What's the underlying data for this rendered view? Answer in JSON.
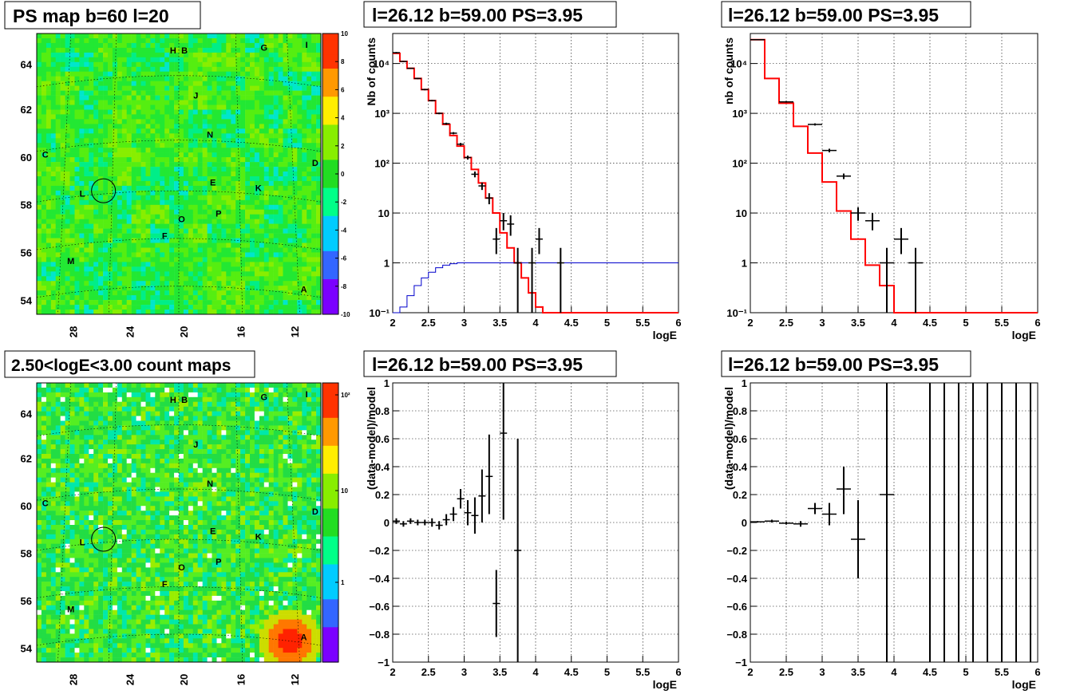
{
  "titles": {
    "map_top": "PS map b=60 l=20",
    "map_bottom": "2.50<logE<3.00 count maps",
    "spec_left": "l=26.12 b=59.00 PS=3.95",
    "spec_right": "l=26.12 b=59.00 PS=3.95",
    "res_left": "l=26.12 b=59.00 PS=3.95",
    "res_right": "l=26.12 b=59.00 PS=3.95"
  },
  "maps": {
    "x_ticks": [
      "28",
      "24",
      "20",
      "16",
      "12"
    ],
    "y_ticks": [
      "64",
      "62",
      "60",
      "58",
      "56",
      "54"
    ],
    "source_labels": [
      "H",
      "B",
      "G",
      "I",
      "J",
      "N",
      "C",
      "D",
      "E",
      "K",
      "L",
      "O",
      "P",
      "F",
      "M",
      "A"
    ],
    "ps_scale_ticks": [
      "10",
      "8",
      "6",
      "4",
      "2",
      "0",
      "-2",
      "-4",
      "-6",
      "-8",
      "-10"
    ],
    "count_scale_ticks": [
      "10²",
      "10",
      "1"
    ],
    "colors": [
      "#7b00ff",
      "#3366ff",
      "#00ccff",
      "#00ff88",
      "#22dd22",
      "#88ee00",
      "#ffee00",
      "#ff9900",
      "#ff3300"
    ]
  },
  "chart_data": [
    {
      "type": "line",
      "panel": "spec_left",
      "xlabel": "logE",
      "ylabel": "Nb of counts",
      "xlim": [
        2,
        6
      ],
      "ylim": [
        0.1,
        40000
      ],
      "log_y": true,
      "grid": true,
      "x_ticks": [
        "2",
        "2.5",
        "3",
        "3.5",
        "4",
        "4.5",
        "5",
        "5.5",
        "6"
      ],
      "y_ticks": [
        "10⁻¹",
        "1",
        "10",
        "10²",
        "10³",
        "10⁴"
      ],
      "bin_edges": [
        2.0,
        2.1,
        2.2,
        2.3,
        2.4,
        2.5,
        2.6,
        2.7,
        2.8,
        2.9,
        3.0,
        3.1,
        3.2,
        3.3,
        3.4,
        3.5,
        3.6,
        3.7,
        3.8,
        3.9,
        4.0,
        4.1,
        4.2,
        6.0
      ],
      "series": [
        {
          "color": "#ff0000",
          "values": [
            16000,
            11000,
            8000,
            5000,
            3000,
            1800,
            1000,
            600,
            360,
            220,
            130,
            75,
            40,
            20,
            10,
            4,
            2,
            1,
            0.5,
            0.25,
            0.13,
            0.1,
            0.1
          ]
        },
        {
          "color": "#0000cc",
          "values": [
            0.1,
            0.13,
            0.22,
            0.35,
            0.5,
            0.65,
            0.8,
            0.9,
            0.96,
            1,
            1,
            1,
            1,
            1,
            1,
            1,
            1,
            1,
            1,
            1,
            1,
            1,
            1
          ]
        }
      ],
      "points": [
        {
          "x": 2.05,
          "y": 16500,
          "ex": 0.05,
          "lo": 16000,
          "hi": 17000
        },
        {
          "x": 2.15,
          "y": 11000,
          "ex": 0.05,
          "lo": 10700,
          "hi": 11300
        },
        {
          "x": 2.25,
          "y": 8000,
          "ex": 0.05,
          "lo": 7800,
          "hi": 8200
        },
        {
          "x": 2.35,
          "y": 5000,
          "ex": 0.05,
          "lo": 4850,
          "hi": 5150
        },
        {
          "x": 2.45,
          "y": 3000,
          "ex": 0.05,
          "lo": 2900,
          "hi": 3100
        },
        {
          "x": 2.55,
          "y": 1800,
          "ex": 0.05,
          "lo": 1740,
          "hi": 1860
        },
        {
          "x": 2.65,
          "y": 1000,
          "ex": 0.05,
          "lo": 960,
          "hi": 1040
        },
        {
          "x": 2.75,
          "y": 620,
          "ex": 0.05,
          "lo": 590,
          "hi": 650
        },
        {
          "x": 2.85,
          "y": 400,
          "ex": 0.05,
          "lo": 380,
          "hi": 420
        },
        {
          "x": 2.95,
          "y": 240,
          "ex": 0.05,
          "lo": 225,
          "hi": 255
        },
        {
          "x": 3.05,
          "y": 130,
          "ex": 0.05,
          "lo": 118,
          "hi": 142
        },
        {
          "x": 3.15,
          "y": 60,
          "ex": 0.05,
          "lo": 52,
          "hi": 68
        },
        {
          "x": 3.25,
          "y": 35,
          "ex": 0.05,
          "lo": 29,
          "hi": 41
        },
        {
          "x": 3.35,
          "y": 20,
          "ex": 0.05,
          "lo": 15,
          "hi": 25
        },
        {
          "x": 3.45,
          "y": 3,
          "ex": 0.05,
          "lo": 1.5,
          "hi": 5
        },
        {
          "x": 3.55,
          "y": 7,
          "ex": 0.05,
          "lo": 4.5,
          "hi": 10
        },
        {
          "x": 3.65,
          "y": 6,
          "ex": 0.05,
          "lo": 3.5,
          "hi": 9
        },
        {
          "x": 3.75,
          "y": 1,
          "ex": 0.05,
          "lo": 0.1,
          "hi": 2
        },
        {
          "x": 3.95,
          "y": 1,
          "ex": 0.05,
          "lo": 0.1,
          "hi": 2
        },
        {
          "x": 4.05,
          "y": 3,
          "ex": 0.05,
          "lo": 1.5,
          "hi": 5
        },
        {
          "x": 4.35,
          "y": 1,
          "ex": 0.05,
          "lo": 0.1,
          "hi": 2
        }
      ]
    },
    {
      "type": "line",
      "panel": "spec_right",
      "xlabel": "logE",
      "ylabel": "nb of counts",
      "xlim": [
        2,
        6
      ],
      "ylim": [
        0.1,
        40000
      ],
      "log_y": true,
      "grid": true,
      "x_ticks": [
        "2",
        "2.5",
        "3",
        "3.5",
        "4",
        "4.5",
        "5",
        "5.5",
        "6"
      ],
      "y_ticks": [
        "10⁻¹",
        "1",
        "10",
        "10²",
        "10³",
        "10⁴"
      ],
      "bin_edges": [
        2.0,
        2.2,
        2.4,
        2.6,
        2.8,
        3.0,
        3.2,
        3.4,
        3.6,
        3.8,
        4.0,
        4.2,
        6.0
      ],
      "series": [
        {
          "color": "#ff0000",
          "values": [
            30000,
            5000,
            1600,
            550,
            160,
            42,
            11,
            3,
            0.9,
            0.35,
            0.1,
            0.1
          ]
        }
      ],
      "points": [
        {
          "x": 2.1,
          "y": 30000,
          "ex": 0.1,
          "lo": 29500,
          "hi": 30500
        },
        {
          "x": 2.5,
          "y": 1700,
          "ex": 0.1,
          "lo": 1640,
          "hi": 1760
        },
        {
          "x": 2.9,
          "y": 600,
          "ex": 0.1,
          "lo": 570,
          "hi": 630
        },
        {
          "x": 3.1,
          "y": 180,
          "ex": 0.1,
          "lo": 165,
          "hi": 195
        },
        {
          "x": 3.3,
          "y": 55,
          "ex": 0.1,
          "lo": 48,
          "hi": 62
        },
        {
          "x": 3.5,
          "y": 10,
          "ex": 0.1,
          "lo": 7,
          "hi": 13
        },
        {
          "x": 3.7,
          "y": 7,
          "ex": 0.1,
          "lo": 4.5,
          "hi": 10
        },
        {
          "x": 3.9,
          "y": 1,
          "ex": 0.1,
          "lo": 0.1,
          "hi": 2
        },
        {
          "x": 4.1,
          "y": 3,
          "ex": 0.1,
          "lo": 1.5,
          "hi": 5
        },
        {
          "x": 4.3,
          "y": 1,
          "ex": 0.1,
          "lo": 0.1,
          "hi": 2
        }
      ]
    },
    {
      "type": "scatter",
      "panel": "res_left",
      "xlabel": "logE",
      "ylabel": "(data-model)/model",
      "xlim": [
        2,
        6
      ],
      "ylim": [
        -1,
        1
      ],
      "grid": true,
      "x_ticks": [
        "2",
        "2.5",
        "3",
        "3.5",
        "4",
        "4.5",
        "5",
        "5.5",
        "6"
      ],
      "y_ticks": [
        "1",
        "0.8",
        "0.6",
        "0.4",
        "0.2",
        "0",
        "−0.2",
        "−0.4",
        "−0.6",
        "−0.8",
        "−1"
      ],
      "points": [
        {
          "x": 2.05,
          "y": 0.01,
          "ex": 0.05,
          "lo": -0.01,
          "hi": 0.03
        },
        {
          "x": 2.15,
          "y": -0.01,
          "ex": 0.05,
          "lo": -0.03,
          "hi": 0.01
        },
        {
          "x": 2.25,
          "y": 0.01,
          "ex": 0.05,
          "lo": -0.01,
          "hi": 0.03
        },
        {
          "x": 2.35,
          "y": 0.0,
          "ex": 0.05,
          "lo": -0.02,
          "hi": 0.02
        },
        {
          "x": 2.45,
          "y": 0.0,
          "ex": 0.05,
          "lo": -0.02,
          "hi": 0.02
        },
        {
          "x": 2.55,
          "y": 0.0,
          "ex": 0.05,
          "lo": -0.03,
          "hi": 0.03
        },
        {
          "x": 2.65,
          "y": -0.02,
          "ex": 0.05,
          "lo": -0.05,
          "hi": 0.01
        },
        {
          "x": 2.75,
          "y": 0.02,
          "ex": 0.05,
          "lo": -0.02,
          "hi": 0.06
        },
        {
          "x": 2.85,
          "y": 0.06,
          "ex": 0.05,
          "lo": 0.01,
          "hi": 0.11
        },
        {
          "x": 2.95,
          "y": 0.17,
          "ex": 0.05,
          "lo": 0.1,
          "hi": 0.24
        },
        {
          "x": 3.05,
          "y": 0.07,
          "ex": 0.05,
          "lo": -0.02,
          "hi": 0.16
        },
        {
          "x": 3.15,
          "y": 0.05,
          "ex": 0.05,
          "lo": -0.08,
          "hi": 0.18
        },
        {
          "x": 3.25,
          "y": 0.19,
          "ex": 0.05,
          "lo": 0.0,
          "hi": 0.38
        },
        {
          "x": 3.35,
          "y": 0.33,
          "ex": 0.05,
          "lo": 0.06,
          "hi": 0.63
        },
        {
          "x": 3.45,
          "y": -0.58,
          "ex": 0.05,
          "lo": -0.82,
          "hi": -0.34
        },
        {
          "x": 3.55,
          "y": 0.64,
          "ex": 0.05,
          "lo": 0.02,
          "hi": 1.0
        },
        {
          "x": 3.75,
          "y": -0.2,
          "ex": 0.05,
          "lo": -1.0,
          "hi": 0.6
        }
      ]
    },
    {
      "type": "scatter",
      "panel": "res_right",
      "xlabel": "logE",
      "ylabel": "(data-model)/model",
      "xlim": [
        2,
        6
      ],
      "ylim": [
        -1,
        1
      ],
      "grid": true,
      "x_ticks": [
        "2",
        "2.5",
        "3",
        "3.5",
        "4",
        "4.5",
        "5",
        "5.5",
        "6"
      ],
      "y_ticks": [
        "1",
        "0.8",
        "0.6",
        "0.4",
        "0.2",
        "0",
        "−0.2",
        "−0.4",
        "−0.6",
        "−0.8",
        "−1"
      ],
      "points": [
        {
          "x": 2.1,
          "y": 0.005,
          "ex": 0.1,
          "lo": 0.0,
          "hi": 0.01
        },
        {
          "x": 2.3,
          "y": 0.01,
          "ex": 0.1,
          "lo": 0.0,
          "hi": 0.02
        },
        {
          "x": 2.5,
          "y": -0.005,
          "ex": 0.1,
          "lo": -0.015,
          "hi": 0.005
        },
        {
          "x": 2.7,
          "y": -0.01,
          "ex": 0.1,
          "lo": -0.03,
          "hi": 0.01
        },
        {
          "x": 2.9,
          "y": 0.1,
          "ex": 0.1,
          "lo": 0.06,
          "hi": 0.14
        },
        {
          "x": 3.1,
          "y": 0.06,
          "ex": 0.1,
          "lo": -0.02,
          "hi": 0.14
        },
        {
          "x": 3.3,
          "y": 0.24,
          "ex": 0.1,
          "lo": 0.06,
          "hi": 0.4
        },
        {
          "x": 3.5,
          "y": -0.12,
          "ex": 0.1,
          "lo": -0.4,
          "hi": 0.16
        },
        {
          "x": 3.9,
          "y": 0.2,
          "ex": 0.1,
          "lo": -1.0,
          "hi": 1.0
        },
        {
          "x": 4.5,
          "y": 1.0,
          "ex": 0.0,
          "lo": -1.0,
          "hi": 1.0
        },
        {
          "x": 4.7,
          "y": 1.0,
          "ex": 0.0,
          "lo": -1.0,
          "hi": 1.0
        },
        {
          "x": 4.9,
          "y": 1.0,
          "ex": 0.0,
          "lo": -1.0,
          "hi": 1.0
        },
        {
          "x": 5.1,
          "y": 1.0,
          "ex": 0.0,
          "lo": -1.0,
          "hi": 1.0
        },
        {
          "x": 5.3,
          "y": 1.0,
          "ex": 0.0,
          "lo": -1.0,
          "hi": 1.0
        },
        {
          "x": 5.5,
          "y": 1.0,
          "ex": 0.0,
          "lo": -1.0,
          "hi": 1.0
        },
        {
          "x": 5.7,
          "y": 1.0,
          "ex": 0.0,
          "lo": -1.0,
          "hi": 1.0
        },
        {
          "x": 5.9,
          "y": 1.0,
          "ex": 0.0,
          "lo": -1.0,
          "hi": 1.0
        }
      ]
    }
  ]
}
